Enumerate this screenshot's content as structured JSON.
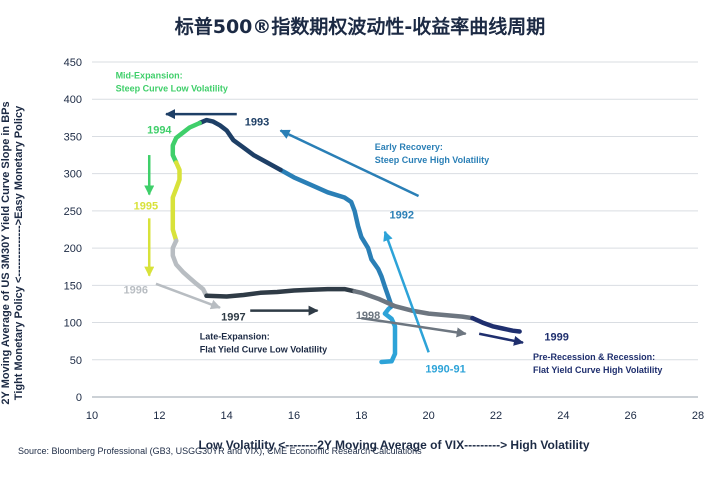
{
  "chart_data": {
    "type": "line",
    "title": "标普500®指数期权波动性-收益率曲线周期",
    "xlabel": "Low Volatility <--------2Y Moving Average of VIX---------> High Volatility",
    "ylabel_lines": [
      "2Y Moving Average of US 3M30Y Yield Curve Slope in BPs",
      "Tight Monetary Policy <-------------->Easy Monetary Policy"
    ],
    "xlim": [
      10,
      28
    ],
    "ylim": [
      0,
      450
    ],
    "x_ticks": [
      "10",
      "12",
      "14",
      "16",
      "18",
      "20",
      "22",
      "24",
      "26",
      "28"
    ],
    "y_ticks": [
      "0",
      "50",
      "100",
      "150",
      "200",
      "250",
      "300",
      "350",
      "400",
      "450"
    ],
    "grid": "horizontal",
    "series": [
      {
        "year": "1990-91",
        "color": "#2da3d8",
        "points": [
          [
            18.6,
            47
          ],
          [
            18.9,
            48
          ],
          [
            19.0,
            58
          ],
          [
            19.0,
            80
          ],
          [
            19.0,
            95
          ],
          [
            18.9,
            105
          ],
          [
            18.7,
            112
          ],
          [
            18.8,
            118
          ],
          [
            18.9,
            122
          ]
        ]
      },
      {
        "year": "1992",
        "color": "#2a7fb6",
        "points": [
          [
            18.9,
            122
          ],
          [
            18.8,
            135
          ],
          [
            18.7,
            148
          ],
          [
            18.6,
            162
          ],
          [
            18.5,
            172
          ],
          [
            18.3,
            185
          ],
          [
            18.2,
            200
          ],
          [
            18.0,
            215
          ],
          [
            17.9,
            230
          ],
          [
            17.8,
            250
          ],
          [
            17.7,
            262
          ],
          [
            17.5,
            268
          ],
          [
            17.0,
            275
          ],
          [
            16.5,
            285
          ],
          [
            16.0,
            295
          ],
          [
            15.6,
            305
          ]
        ]
      },
      {
        "year": "1993",
        "color": "#1e3f66",
        "points": [
          [
            15.6,
            305
          ],
          [
            15.2,
            315
          ],
          [
            14.8,
            325
          ],
          [
            14.5,
            335
          ],
          [
            14.2,
            345
          ],
          [
            14.0,
            358
          ],
          [
            13.8,
            365
          ],
          [
            13.6,
            370
          ],
          [
            13.4,
            372
          ],
          [
            13.2,
            368
          ]
        ]
      },
      {
        "year": "1994",
        "color": "#3fcf6a",
        "points": [
          [
            13.2,
            368
          ],
          [
            12.9,
            362
          ],
          [
            12.7,
            355
          ],
          [
            12.5,
            348
          ],
          [
            12.4,
            338
          ],
          [
            12.4,
            325
          ],
          [
            12.5,
            315
          ]
        ]
      },
      {
        "year": "1995",
        "color": "#d8e23a",
        "points": [
          [
            12.5,
            315
          ],
          [
            12.6,
            305
          ],
          [
            12.6,
            292
          ],
          [
            12.5,
            280
          ],
          [
            12.4,
            268
          ],
          [
            12.4,
            255
          ],
          [
            12.4,
            240
          ],
          [
            12.4,
            225
          ],
          [
            12.5,
            210
          ]
        ]
      },
      {
        "year": "1996",
        "color": "#b8bdc2",
        "points": [
          [
            12.5,
            210
          ],
          [
            12.4,
            200
          ],
          [
            12.4,
            190
          ],
          [
            12.5,
            178
          ],
          [
            12.7,
            168
          ],
          [
            12.9,
            160
          ],
          [
            13.1,
            152
          ],
          [
            13.3,
            145
          ],
          [
            13.4,
            136
          ]
        ]
      },
      {
        "year": "1997",
        "color": "#2f3b46",
        "points": [
          [
            13.4,
            136
          ],
          [
            14.0,
            135
          ],
          [
            14.5,
            137
          ],
          [
            15.0,
            140
          ],
          [
            15.5,
            141
          ],
          [
            16.0,
            143
          ],
          [
            16.5,
            144
          ],
          [
            17.0,
            145
          ],
          [
            17.5,
            145
          ],
          [
            17.8,
            142
          ]
        ]
      },
      {
        "year": "1998",
        "color": "#6d7680",
        "points": [
          [
            17.8,
            142
          ],
          [
            18.0,
            140
          ],
          [
            18.5,
            132
          ],
          [
            19.0,
            122
          ],
          [
            19.5,
            116
          ],
          [
            20.0,
            112
          ],
          [
            20.5,
            110
          ],
          [
            21.0,
            108
          ],
          [
            21.3,
            106
          ]
        ]
      },
      {
        "year": "1999",
        "color": "#1f2f6e",
        "points": [
          [
            21.3,
            106
          ],
          [
            21.6,
            100
          ],
          [
            21.9,
            95
          ],
          [
            22.2,
            92
          ],
          [
            22.5,
            89
          ],
          [
            22.7,
            88
          ]
        ]
      }
    ],
    "year_labels": [
      {
        "text": "1990-91",
        "color": "#2da3d8"
      },
      {
        "text": "1992",
        "color": "#2a7fb6"
      },
      {
        "text": "1993",
        "color": "#1e3f66"
      },
      {
        "text": "1994",
        "color": "#3fcf6a"
      },
      {
        "text": "1995",
        "color": "#d8e23a"
      },
      {
        "text": "1996",
        "color": "#b8bdc2"
      },
      {
        "text": "1997",
        "color": "#2f3b46"
      },
      {
        "text": "1998",
        "color": "#6d7680"
      },
      {
        "text": "1999",
        "color": "#1f2f6e"
      }
    ],
    "annotations": [
      {
        "lines": [
          "Mid-Expansion:",
          "Steep Curve  Low Volatility"
        ],
        "color": "#3fcf6a"
      },
      {
        "lines": [
          "Early Recovery:",
          "Steep Curve  High Volatility"
        ],
        "color": "#2a7fb6"
      },
      {
        "lines": [
          "Late-Expansion:",
          "Flat Yield Curve  Low Volatility"
        ],
        "color": "#1c2a44"
      },
      {
        "lines": [
          "Pre-Recession & Recession:",
          "Flat Yield Curve   High Volatility"
        ],
        "color": "#1f2f6e"
      }
    ],
    "source": "Source: Bloomberg Professional (GB3, USGG30YR and VIX), CME Economic Research Calculations"
  }
}
